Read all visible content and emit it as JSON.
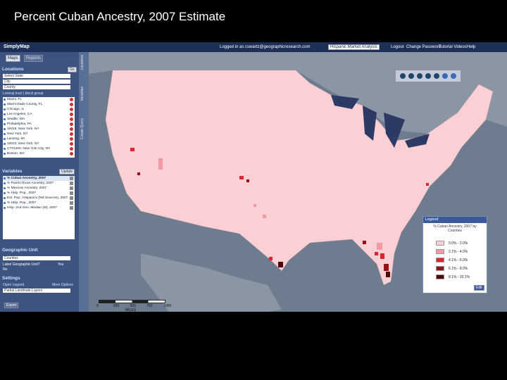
{
  "slide_title": "Percent Cuban Ancestry, 2007 Estimate",
  "app": {
    "logo": "SimplyMap",
    "logged_in": "Logged in as cswartz@geographicresearch.com",
    "profile": "Hispanic Market Analysis",
    "menu": [
      "Logout",
      "Change Password",
      "Tutorial Videos",
      "Help"
    ],
    "tabs": [
      "Maps",
      "Reports"
    ],
    "side_tabs": [
      "Locations",
      "Variables",
      "Create Query"
    ]
  },
  "locations": {
    "title": "Locations",
    "go": "Go",
    "inputs": [
      "Select State",
      "City",
      "County"
    ],
    "lookup": "Lookup tract | block group",
    "items": [
      "Miami, FL",
      "Miami-Dade County, FL",
      "Chicago, IL",
      "Los Angeles, CA",
      "Seattle, WA",
      "Philadelphia, PA",
      "10019, New York, NY",
      "New York, NY",
      "Lansing, MI",
      "10023, New York, NY",
      "CT#1200, New York City, NY",
      "Boston, MA"
    ]
  },
  "variables": {
    "title": "Variables",
    "update": "Update",
    "items": [
      "% Cuban Ancestry, 2007",
      "% Puerto Rican Ancestry, 2007",
      "% Mexican Ancestry, 2007",
      "% Hisp. Pop., 2007",
      "Est. Pop.: Hispanics (Md Sources), 2007",
      "% Hisp. Pop., 2007",
      "Hisp. 2nd Gen. Median (M), 2007"
    ]
  },
  "geographic_unit": {
    "title": "Geographic Unit",
    "unit": "Counties",
    "label_question": "Label Geographic Unit?",
    "yes": "Yes",
    "no": "No"
  },
  "settings": {
    "title": "Settings",
    "open_legend": "Open Legend",
    "more_options": "More Options",
    "layers": "Partial Landmark Layers",
    "export": "Export"
  },
  "map": {
    "scale_labels": [
      "0",
      "250",
      "500",
      "750",
      "1000"
    ],
    "scale_unit": "MILES",
    "legend": {
      "title": "Legend",
      "subtitle": "% Cuban Ancestry, 2007 by Counties",
      "edit": "Edit",
      "items": [
        {
          "label": "0.0% - 2.0%",
          "color": "#fbd0d5"
        },
        {
          "label": "2.1% - 4.0%",
          "color": "#f29aa3"
        },
        {
          "label": "4.1% - 6.0%",
          "color": "#d9262f"
        },
        {
          "label": "6.1% - 8.0%",
          "color": "#9c0e16"
        },
        {
          "label": "8.1% - 33.1%",
          "color": "#520006"
        }
      ]
    }
  }
}
